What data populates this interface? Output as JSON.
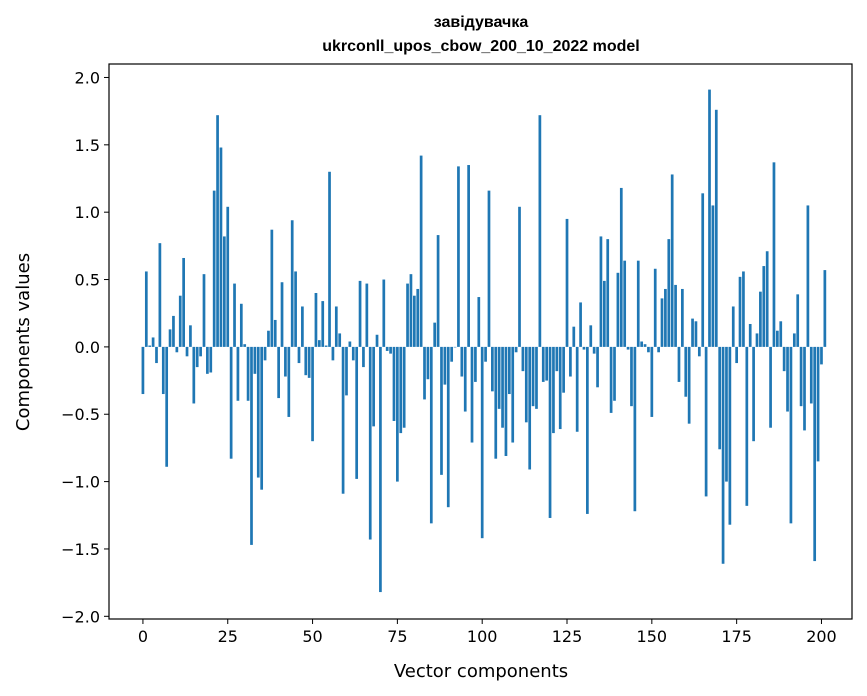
{
  "chart_data": {
    "type": "bar",
    "title_line1": "завідувачка",
    "title_line2": "ukrconll_upos_cbow_200_10_2022 model",
    "xlabel": "Vector components",
    "ylabel": "Components values",
    "xlim": [
      -10,
      209
    ],
    "ylim": [
      -2.02,
      2.1
    ],
    "xticks": [
      0,
      25,
      50,
      75,
      100,
      125,
      150,
      175,
      200
    ],
    "yticks": [
      -2.0,
      -1.5,
      -1.0,
      -0.5,
      0.0,
      0.5,
      1.0,
      1.5,
      2.0
    ],
    "ytick_labels": [
      "−2.0",
      "−1.5",
      "−1.0",
      "−0.5",
      "0.0",
      "0.5",
      "1.0",
      "1.5",
      "2.0"
    ],
    "bar_color": "#1f77b4",
    "values": [
      -0.35,
      0.56,
      0.01,
      0.07,
      -0.12,
      0.77,
      -0.35,
      -0.89,
      0.13,
      0.23,
      -0.04,
      0.38,
      0.66,
      -0.07,
      0.16,
      -0.42,
      -0.15,
      -0.07,
      0.54,
      -0.2,
      -0.19,
      1.16,
      1.72,
      1.48,
      0.82,
      1.04,
      -0.83,
      0.47,
      -0.4,
      0.32,
      0.02,
      -0.4,
      -1.47,
      -0.2,
      -0.97,
      -1.06,
      -0.1,
      0.12,
      0.87,
      0.2,
      -0.38,
      0.48,
      -0.22,
      -0.52,
      0.94,
      0.56,
      -0.12,
      0.3,
      -0.21,
      -0.23,
      -0.7,
      0.4,
      0.05,
      0.34,
      0.01,
      1.3,
      -0.1,
      0.3,
      0.1,
      -1.09,
      -0.36,
      0.04,
      -0.1,
      -0.98,
      0.49,
      -0.15,
      0.47,
      -1.43,
      -0.59,
      0.09,
      -1.82,
      0.5,
      -0.03,
      -0.05,
      -0.55,
      -1.0,
      -0.64,
      -0.6,
      0.47,
      0.54,
      0.38,
      0.43,
      1.42,
      -0.39,
      -0.24,
      -1.31,
      0.18,
      0.83,
      -0.95,
      -0.28,
      -1.19,
      -0.11,
      0.0,
      1.34,
      -0.22,
      -0.48,
      1.35,
      -0.71,
      -0.26,
      0.37,
      -1.42,
      -0.11,
      1.16,
      -0.33,
      -0.83,
      -0.46,
      -0.6,
      -0.81,
      -0.35,
      -0.71,
      -0.04,
      1.04,
      -0.18,
      -0.56,
      -0.91,
      -0.44,
      -0.46,
      1.72,
      -0.26,
      -0.25,
      -1.27,
      -0.64,
      -0.18,
      -0.61,
      -0.34,
      0.95,
      -0.22,
      0.15,
      -0.63,
      0.33,
      -0.02,
      -1.24,
      0.16,
      -0.05,
      -0.3,
      0.82,
      0.49,
      0.8,
      -0.49,
      -0.4,
      0.55,
      1.18,
      0.64,
      -0.02,
      -0.44,
      -1.22,
      0.64,
      0.04,
      0.02,
      -0.04,
      -0.52,
      0.58,
      -0.04,
      0.36,
      0.43,
      0.8,
      1.28,
      0.46,
      -0.26,
      0.43,
      -0.37,
      -0.57,
      0.21,
      0.19,
      -0.07,
      1.14,
      -1.11,
      1.91,
      1.05,
      1.76,
      -0.76,
      -1.61,
      -1.0,
      -1.32,
      0.3,
      -0.12,
      0.52,
      0.56,
      -1.18,
      0.17,
      -0.7,
      0.1,
      0.41,
      0.6,
      0.71,
      -0.6,
      1.37,
      0.12,
      0.19,
      -0.18,
      -0.48,
      -1.31,
      0.1,
      0.39,
      -0.44,
      -0.62,
      1.05,
      -0.42,
      -1.59,
      -0.85,
      -0.13,
      0.57
    ]
  }
}
